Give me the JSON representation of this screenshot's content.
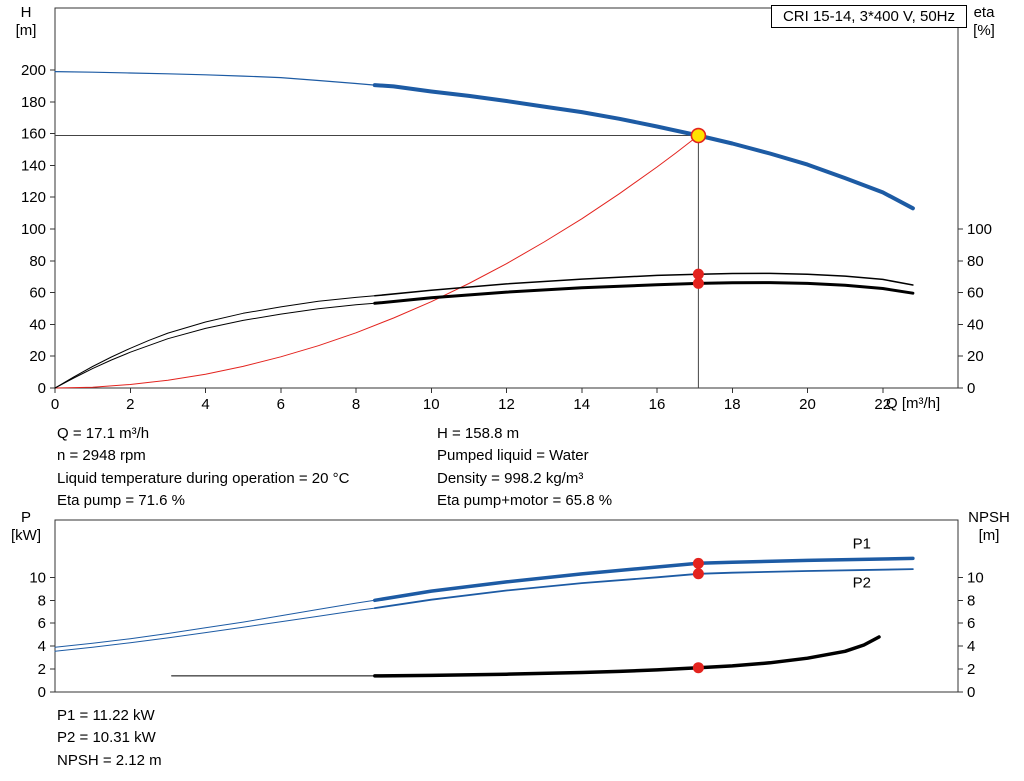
{
  "header": {
    "model": "CRI 15-14, 3*400 V, 50Hz"
  },
  "axes_labels": {
    "h_symbol": "H",
    "h_unit": "[m]",
    "eta_symbol": "eta",
    "eta_unit": "[%]",
    "q": "Q [m³/h]",
    "p_symbol": "P",
    "p_unit": "[kW]",
    "npsh_symbol": "NPSH",
    "npsh_unit": "[m]"
  },
  "operating_point_info": {
    "left": [
      "Q = 17.1 m³/h",
      "n = 2948 rpm",
      "Liquid temperature during operation = 20 °C",
      "Eta pump = 71.6 %"
    ],
    "right": [
      "H = 158.8 m",
      "Pumped liquid = Water",
      "Density = 998.2 kg/m³",
      "Eta pump+motor = 65.8 %"
    ]
  },
  "power_info": [
    "P1 = 11.22 kW",
    "P2 = 10.31 kW",
    "NPSH = 2.12 m"
  ],
  "operating_point": {
    "q_m3h": 17.1,
    "h_m": 158.8,
    "n_rpm": 2948,
    "eta_pump_pct": 71.6,
    "eta_pump_motor_pct": 65.8,
    "p1_kw": 11.22,
    "p2_kw": 10.31,
    "npsh_m": 2.12,
    "liquid": "Water",
    "density_kg_m3": 998.2,
    "temperature_c": 20
  },
  "colors": {
    "axis": "#333333",
    "curve_blue": "#1d5ba4",
    "curve_red": "#e3231e",
    "curve_black": "#000000",
    "duty_yellow": "#ffe100"
  },
  "chart_data": [
    {
      "type": "line",
      "name": "qh-eta-chart",
      "title": "CRI 15-14, 3*400 V, 50Hz",
      "x": {
        "label": "Q [m³/h]",
        "min": 0,
        "max": 24,
        "ticks": [
          0,
          2,
          4,
          6,
          8,
          10,
          12,
          14,
          16,
          18,
          20,
          22
        ]
      },
      "y_left": {
        "label": "H [m]",
        "min": 0,
        "max": 239,
        "ticks": [
          0,
          20,
          40,
          60,
          80,
          100,
          120,
          140,
          160,
          180,
          200
        ]
      },
      "y_right": {
        "label": "eta [%]",
        "min": 0,
        "max": 239,
        "ticks": [
          0,
          20,
          40,
          60,
          80,
          100
        ]
      },
      "guide_lines": [
        {
          "name": "duty-head-hline",
          "x1": 0,
          "y1": 158.8,
          "x2": 17.1,
          "y2": 158.8,
          "color": "#444444",
          "width": 1
        },
        {
          "name": "duty-flow-vline",
          "x1": 17.1,
          "y1": 0,
          "x2": 17.1,
          "y2": 158.8,
          "color": "#444444",
          "width": 1
        }
      ],
      "series": [
        {
          "name": "head-curve-extrapolated",
          "color": "#1d5ba4",
          "width": 1.2,
          "points": [
            [
              0,
              199
            ],
            [
              1,
              198.6
            ],
            [
              2,
              198.1
            ],
            [
              3,
              197.6
            ],
            [
              4,
              197
            ],
            [
              5,
              196.2
            ],
            [
              6,
              195.2
            ],
            [
              7,
              193.4
            ],
            [
              8,
              191.5
            ],
            [
              8.5,
              190.5
            ]
          ]
        },
        {
          "name": "head-curve",
          "color": "#1d5ba4",
          "width": 4,
          "points": [
            [
              8.5,
              190.5
            ],
            [
              9,
              189.7
            ],
            [
              10,
              186.5
            ],
            [
              11,
              183.7
            ],
            [
              12,
              180.5
            ],
            [
              13,
              177
            ],
            [
              14,
              173.5
            ],
            [
              15,
              169.3
            ],
            [
              16,
              164.5
            ],
            [
              17.1,
              158.8
            ],
            [
              18,
              153.8
            ],
            [
              19,
              147.5
            ],
            [
              20,
              140.5
            ],
            [
              21,
              132
            ],
            [
              22,
              123
            ],
            [
              22.8,
              113
            ]
          ]
        },
        {
          "name": "duty-parabola",
          "color": "#e3231e",
          "width": 1,
          "points": [
            [
              0,
              0
            ],
            [
              1,
              0.5
            ],
            [
              2,
              2.2
            ],
            [
              3,
              4.9
            ],
            [
              4,
              8.7
            ],
            [
              5,
              13.6
            ],
            [
              6,
              19.6
            ],
            [
              7,
              26.6
            ],
            [
              8,
              34.7
            ],
            [
              9,
              44
            ],
            [
              10,
              54.3
            ],
            [
              11,
              65.7
            ],
            [
              12,
              78.2
            ],
            [
              13,
              91.8
            ],
            [
              14,
              106.4
            ],
            [
              15,
              122.2
            ],
            [
              16,
              139
            ],
            [
              16.5,
              147.8
            ],
            [
              17.1,
              158.8
            ]
          ]
        },
        {
          "name": "eta-pump-curve-extrapolated",
          "color": "#000000",
          "width": 1,
          "points": [
            [
              0,
              0
            ],
            [
              0.5,
              7
            ],
            [
              1,
              13.5
            ],
            [
              1.5,
              19.5
            ],
            [
              2,
              25
            ],
            [
              2.5,
              30
            ],
            [
              3,
              34.5
            ],
            [
              4,
              41.5
            ],
            [
              5,
              47
            ],
            [
              6,
              51
            ],
            [
              7,
              54.5
            ],
            [
              8,
              57
            ],
            [
              8.5,
              58
            ]
          ]
        },
        {
          "name": "eta-pump-curve",
          "color": "#000000",
          "width": 1.5,
          "points": [
            [
              8.5,
              58
            ],
            [
              10,
              61.5
            ],
            [
              12,
              65.5
            ],
            [
              14,
              68.5
            ],
            [
              16,
              70.8
            ],
            [
              17.1,
              71.6
            ],
            [
              18,
              72
            ],
            [
              19,
              72.1
            ],
            [
              20,
              71.6
            ],
            [
              21,
              70.4
            ],
            [
              22,
              68.3
            ],
            [
              22.8,
              64.8
            ]
          ]
        },
        {
          "name": "eta-pump-motor-curve-extrapolated",
          "color": "#000000",
          "width": 1,
          "points": [
            [
              0,
              0
            ],
            [
              0.5,
              6.3
            ],
            [
              1,
              12.2
            ],
            [
              1.5,
              17.6
            ],
            [
              2,
              22.5
            ],
            [
              3,
              31
            ],
            [
              4,
              37.5
            ],
            [
              5,
              42.5
            ],
            [
              6,
              46.5
            ],
            [
              7,
              49.8
            ],
            [
              8,
              52.3
            ],
            [
              8.5,
              53.3
            ]
          ]
        },
        {
          "name": "eta-pump-motor-curve",
          "color": "#000000",
          "width": 3,
          "points": [
            [
              8.5,
              53.3
            ],
            [
              10,
              56.7
            ],
            [
              12,
              60.3
            ],
            [
              14,
              63
            ],
            [
              16,
              65
            ],
            [
              17.1,
              65.8
            ],
            [
              18,
              66.2
            ],
            [
              19,
              66.3
            ],
            [
              20,
              65.8
            ],
            [
              21,
              64.6
            ],
            [
              22,
              62.6
            ],
            [
              22.8,
              59.6
            ]
          ]
        }
      ],
      "markers": [
        {
          "name": "duty-point",
          "x": 17.1,
          "y": 158.8,
          "r": 7,
          "fill": "#ffe100",
          "stroke": "#e3231e",
          "stroke_width": 1.6
        },
        {
          "name": "eta-pump-duty-dot",
          "x": 17.1,
          "y": 71.6,
          "r": 5.5,
          "fill": "#e3231e"
        },
        {
          "name": "eta-pump-motor-duty-dot",
          "x": 17.1,
          "y": 65.8,
          "r": 5.5,
          "fill": "#e3231e"
        }
      ],
      "labels": []
    },
    {
      "type": "line",
      "name": "power-npsh-chart",
      "x": {
        "label": "Q [m³/h]",
        "min": 0,
        "max": 24,
        "ticks": []
      },
      "y_left": {
        "label": "P [kW]",
        "min": 0,
        "max": 15,
        "ticks": [
          0,
          2,
          4,
          6,
          8,
          10
        ]
      },
      "y_right": {
        "label": "NPSH [m]",
        "min": 0,
        "max": 15,
        "ticks": [
          0,
          2,
          4,
          6,
          8,
          10
        ]
      },
      "guide_lines": [],
      "series": [
        {
          "name": "p1-curve-extrapolated",
          "color": "#1d5ba4",
          "width": 1,
          "points": [
            [
              0,
              3.9
            ],
            [
              1,
              4.25
            ],
            [
              2,
              4.65
            ],
            [
              3,
              5.1
            ],
            [
              4,
              5.6
            ],
            [
              5,
              6.1
            ],
            [
              6,
              6.65
            ],
            [
              7,
              7.2
            ],
            [
              8,
              7.75
            ],
            [
              8.5,
              8
            ]
          ]
        },
        {
          "name": "p1-curve",
          "color": "#1d5ba4",
          "width": 3.5,
          "points": [
            [
              8.5,
              8
            ],
            [
              10,
              8.8
            ],
            [
              12,
              9.6
            ],
            [
              14,
              10.3
            ],
            [
              16,
              10.9
            ],
            [
              17.1,
              11.22
            ],
            [
              18,
              11.32
            ],
            [
              20,
              11.48
            ],
            [
              22,
              11.6
            ],
            [
              22.8,
              11.65
            ]
          ]
        },
        {
          "name": "p2-curve-extrapolated",
          "color": "#1d5ba4",
          "width": 1,
          "points": [
            [
              0,
              3.55
            ],
            [
              1,
              3.9
            ],
            [
              2,
              4.3
            ],
            [
              3,
              4.72
            ],
            [
              4,
              5.18
            ],
            [
              5,
              5.65
            ],
            [
              6,
              6.12
            ],
            [
              7,
              6.6
            ],
            [
              8,
              7.1
            ],
            [
              8.5,
              7.32
            ]
          ]
        },
        {
          "name": "p2-curve",
          "color": "#1d5ba4",
          "width": 1.8,
          "points": [
            [
              8.5,
              7.32
            ],
            [
              10,
              8.05
            ],
            [
              12,
              8.85
            ],
            [
              14,
              9.5
            ],
            [
              16,
              10
            ],
            [
              17.1,
              10.31
            ],
            [
              18,
              10.4
            ],
            [
              20,
              10.55
            ],
            [
              22,
              10.67
            ],
            [
              22.8,
              10.72
            ]
          ]
        },
        {
          "name": "npsh-curve-extrapolated",
          "color": "#000000",
          "width": 1,
          "points": [
            [
              3.1,
              1.4
            ],
            [
              8.5,
              1.4
            ]
          ]
        },
        {
          "name": "npsh-curve",
          "color": "#000000",
          "width": 3.5,
          "points": [
            [
              8.5,
              1.4
            ],
            [
              10,
              1.45
            ],
            [
              12,
              1.55
            ],
            [
              14,
              1.7
            ],
            [
              15,
              1.8
            ],
            [
              16,
              1.93
            ],
            [
              17.1,
              2.12
            ],
            [
              18,
              2.28
            ],
            [
              19,
              2.55
            ],
            [
              20,
              2.95
            ],
            [
              21,
              3.55
            ],
            [
              21.5,
              4.1
            ],
            [
              21.9,
              4.8
            ]
          ]
        }
      ],
      "markers": [
        {
          "name": "p1-duty-dot",
          "x": 17.1,
          "y": 11.22,
          "r": 5.5,
          "fill": "#e3231e"
        },
        {
          "name": "p2-duty-dot",
          "x": 17.1,
          "y": 10.31,
          "r": 5.5,
          "fill": "#e3231e"
        },
        {
          "name": "npsh-duty-dot",
          "x": 17.1,
          "y": 2.12,
          "r": 5.5,
          "fill": "#e3231e"
        }
      ],
      "labels": [
        {
          "name": "p1-curve-label",
          "text": "P1",
          "x": 21.2,
          "y": 12.5,
          "color": "#1d5ba4"
        },
        {
          "name": "p2-curve-label",
          "text": "P2",
          "x": 21.2,
          "y": 9.1,
          "color": "#1d5ba4"
        }
      ]
    }
  ]
}
